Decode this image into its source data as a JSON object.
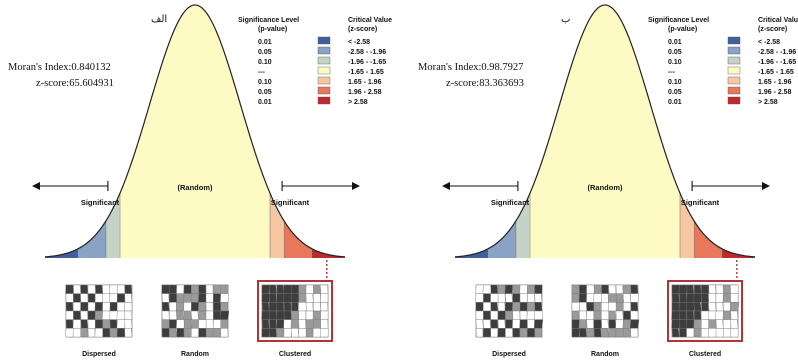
{
  "panels": [
    {
      "id": "left",
      "panel_label": "الف",
      "morans_index_text": "Moran's Index:0.840132",
      "z_score_text": "z-score:65.604931",
      "legend": {
        "header_significance": "Significance Level",
        "header_pvalue": "(p-value)",
        "header_critical": "Critical Value",
        "header_zscore": "(z-score)",
        "rows": [
          {
            "p": "0.01",
            "color": "#3f5f9e",
            "z": "< -2.58"
          },
          {
            "p": "0.05",
            "color": "#8aa2c4",
            "z": "-2.58 - -1.96"
          },
          {
            "p": "0.10",
            "color": "#c5d2c7",
            "z": "-1.96 - -1.65"
          },
          {
            "p": "---",
            "color": "#fdfbc3",
            "z": "-1.65 - 1.65"
          },
          {
            "p": "0.10",
            "color": "#f7c7a2",
            "z": "1.65 - 1.96"
          },
          {
            "p": "0.05",
            "color": "#e8775c",
            "z": "1.96 - 2.58"
          },
          {
            "p": "0.01",
            "color": "#c0282c",
            "z": "> 2.58"
          }
        ]
      },
      "label_random": "(Random)",
      "label_significant_left": "Significant",
      "label_significant_right": "Significant",
      "maps": [
        {
          "caption": "Dispersed",
          "type": "dispersed",
          "highlight": false
        },
        {
          "caption": "Random",
          "type": "random",
          "highlight": false
        },
        {
          "caption": "Clustered",
          "type": "clustered",
          "highlight": true
        }
      ]
    },
    {
      "id": "right",
      "panel_label": "ب",
      "morans_index_text": "Moran's Index:0.98.7927",
      "z_score_text": "z-score:83.363693",
      "legend": {
        "header_significance": "Significance Level",
        "header_pvalue": "(p-value)",
        "header_critical": "Critical Value",
        "header_zscore": "(z-score)",
        "rows": [
          {
            "p": "0.01",
            "color": "#3f5f9e",
            "z": "< -2.58"
          },
          {
            "p": "0.05",
            "color": "#8aa2c4",
            "z": "-2.58 - -1.96"
          },
          {
            "p": "0.10",
            "color": "#c5d2c7",
            "z": "-1.96 - -1.65"
          },
          {
            "p": "---",
            "color": "#fdfbc3",
            "z": "-1.65 - 1.65"
          },
          {
            "p": "0.10",
            "color": "#f7c7a2",
            "z": "1.65 - 1.96"
          },
          {
            "p": "0.05",
            "color": "#e8775c",
            "z": "1.96 - 2.58"
          },
          {
            "p": "0.01",
            "color": "#c0282c",
            "z": "> 2.58"
          }
        ]
      },
      "label_random": "(Random)",
      "label_significant_left": "Significant",
      "label_significant_right": "Significant",
      "maps": [
        {
          "caption": "Dispersed",
          "type": "dispersed",
          "highlight": false
        },
        {
          "caption": "Random",
          "type": "random",
          "highlight": false
        },
        {
          "caption": "Clustered",
          "type": "clustered",
          "highlight": true
        }
      ]
    }
  ],
  "colors": {
    "curve_fill": "#fdfbc3",
    "curve_stroke": "#222222",
    "map_dark": "#3d3d3d",
    "map_mid": "#9a9a9a",
    "map_light": "#ffffff",
    "highlight_frame": "#b23434",
    "pointer_line": "#b23434"
  }
}
